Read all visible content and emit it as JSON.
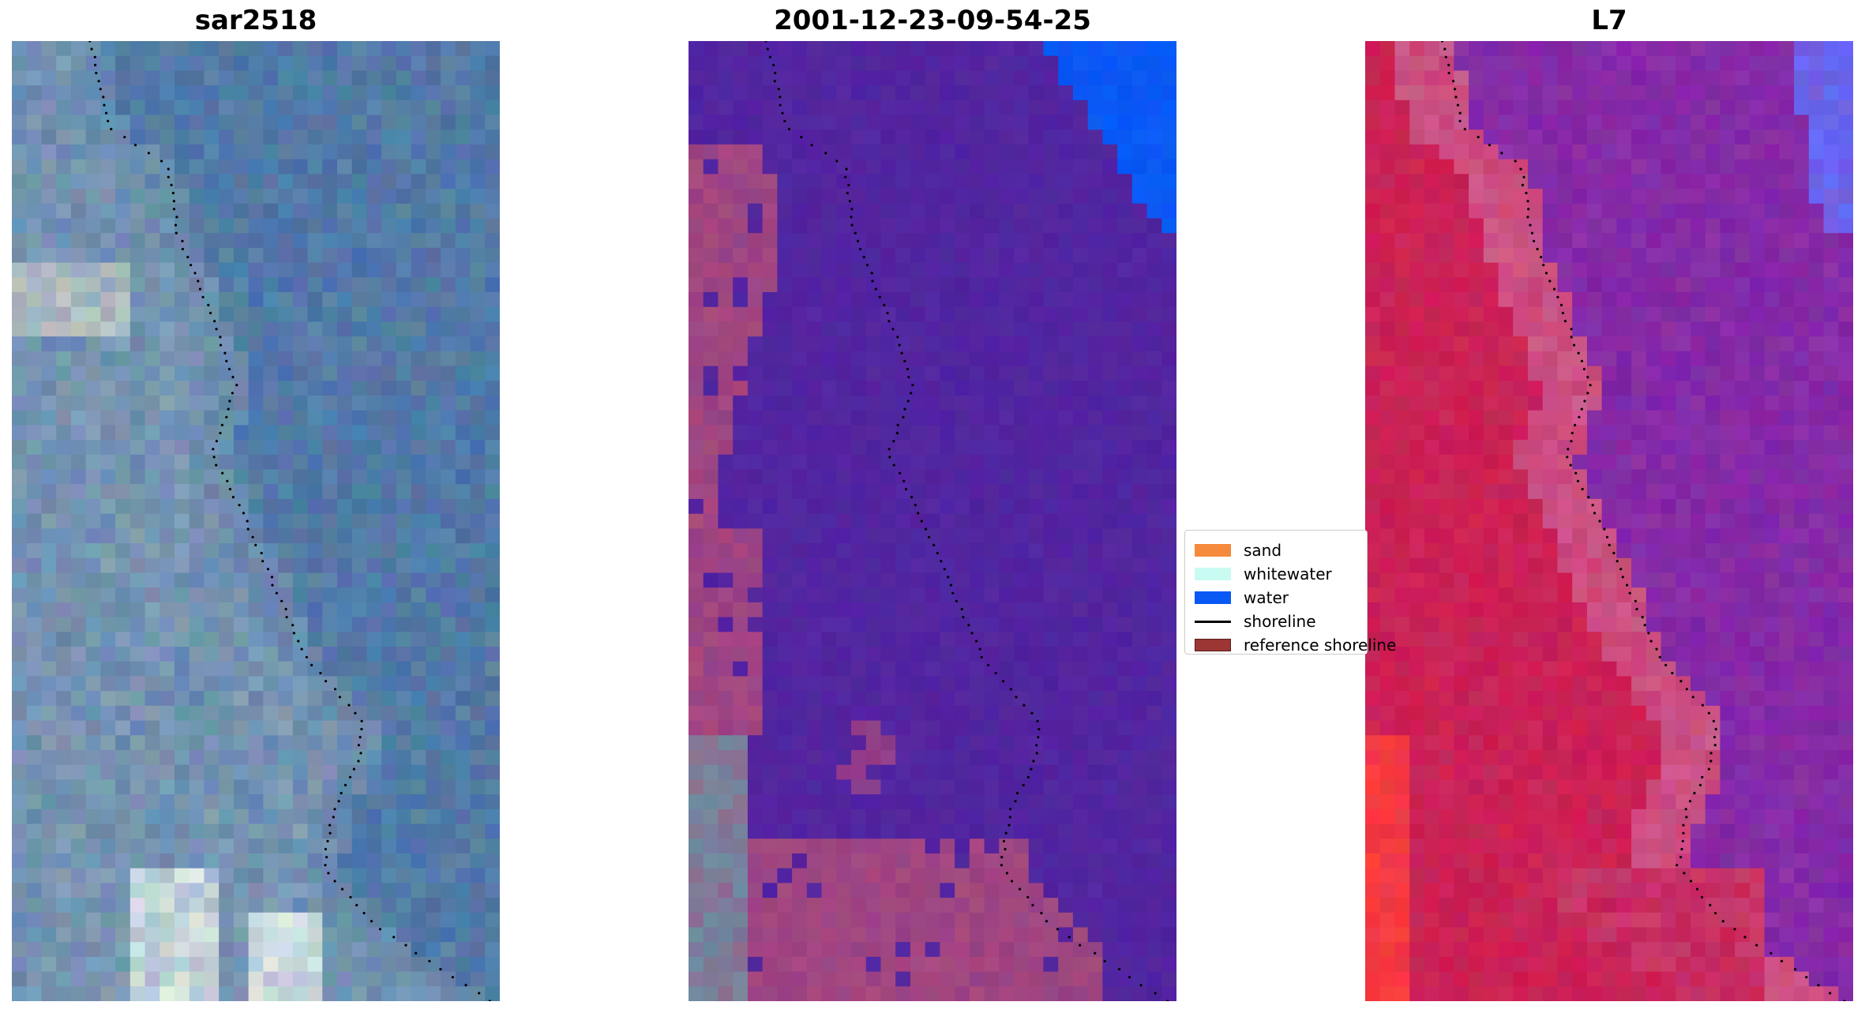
{
  "panels": [
    {
      "title": "sar2518",
      "kind": "rgb"
    },
    {
      "title": "2001-12-23-09-54-25",
      "kind": "classified"
    },
    {
      "title": "L7",
      "kind": "falsecolor"
    }
  ],
  "legend": {
    "items": [
      {
        "label": "sand",
        "color": "#f58a3c",
        "kind": "patch"
      },
      {
        "label": "whitewater",
        "color": "#c9fbf3",
        "kind": "patch"
      },
      {
        "label": "water",
        "color": "#0a59f5",
        "kind": "patch"
      },
      {
        "label": "shoreline",
        "color": "#000000",
        "kind": "line"
      },
      {
        "label": "reference shoreline",
        "color": "#9b3634",
        "kind": "patch"
      }
    ]
  },
  "colors": {
    "rgb_base": "#5b7fa6",
    "classified_land": "#5225a0",
    "classified_sand_overlay": "#a8497e",
    "classified_water": "#0a59f5",
    "falsecolor_sea": "#8a2ea6",
    "falsecolor_land": "#c6255a"
  }
}
